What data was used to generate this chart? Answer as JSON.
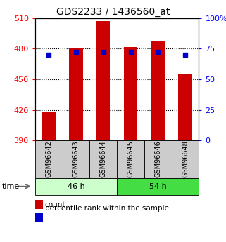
{
  "title": "GDS2233 / 1436560_at",
  "samples": [
    "GSM96642",
    "GSM96643",
    "GSM96644",
    "GSM96645",
    "GSM96646",
    "GSM96648"
  ],
  "group_labels": [
    "46 h",
    "54 h"
  ],
  "group_colors": [
    "#ccffcc",
    "#44dd44"
  ],
  "bar_bottom": 390,
  "bar_tops": [
    418,
    480,
    507,
    482,
    487,
    455
  ],
  "percentile_values": [
    70,
    72.5,
    72.5,
    72.5,
    72.5,
    70
  ],
  "bar_color": "#cc0000",
  "dot_color": "#0000cc",
  "ylim_left": [
    390,
    510
  ],
  "ylim_right": [
    0,
    100
  ],
  "yticks_left": [
    390,
    420,
    450,
    480,
    510
  ],
  "yticks_right": [
    0,
    25,
    50,
    75,
    100
  ],
  "ytick_labels_right": [
    "0",
    "25",
    "50",
    "75",
    "100%"
  ],
  "legend_count": "count",
  "legend_percentile": "percentile rank within the sample",
  "time_label": "time",
  "background_color": "#ffffff",
  "bar_width": 0.5,
  "figsize": [
    3.21,
    3.45
  ],
  "dpi": 100
}
